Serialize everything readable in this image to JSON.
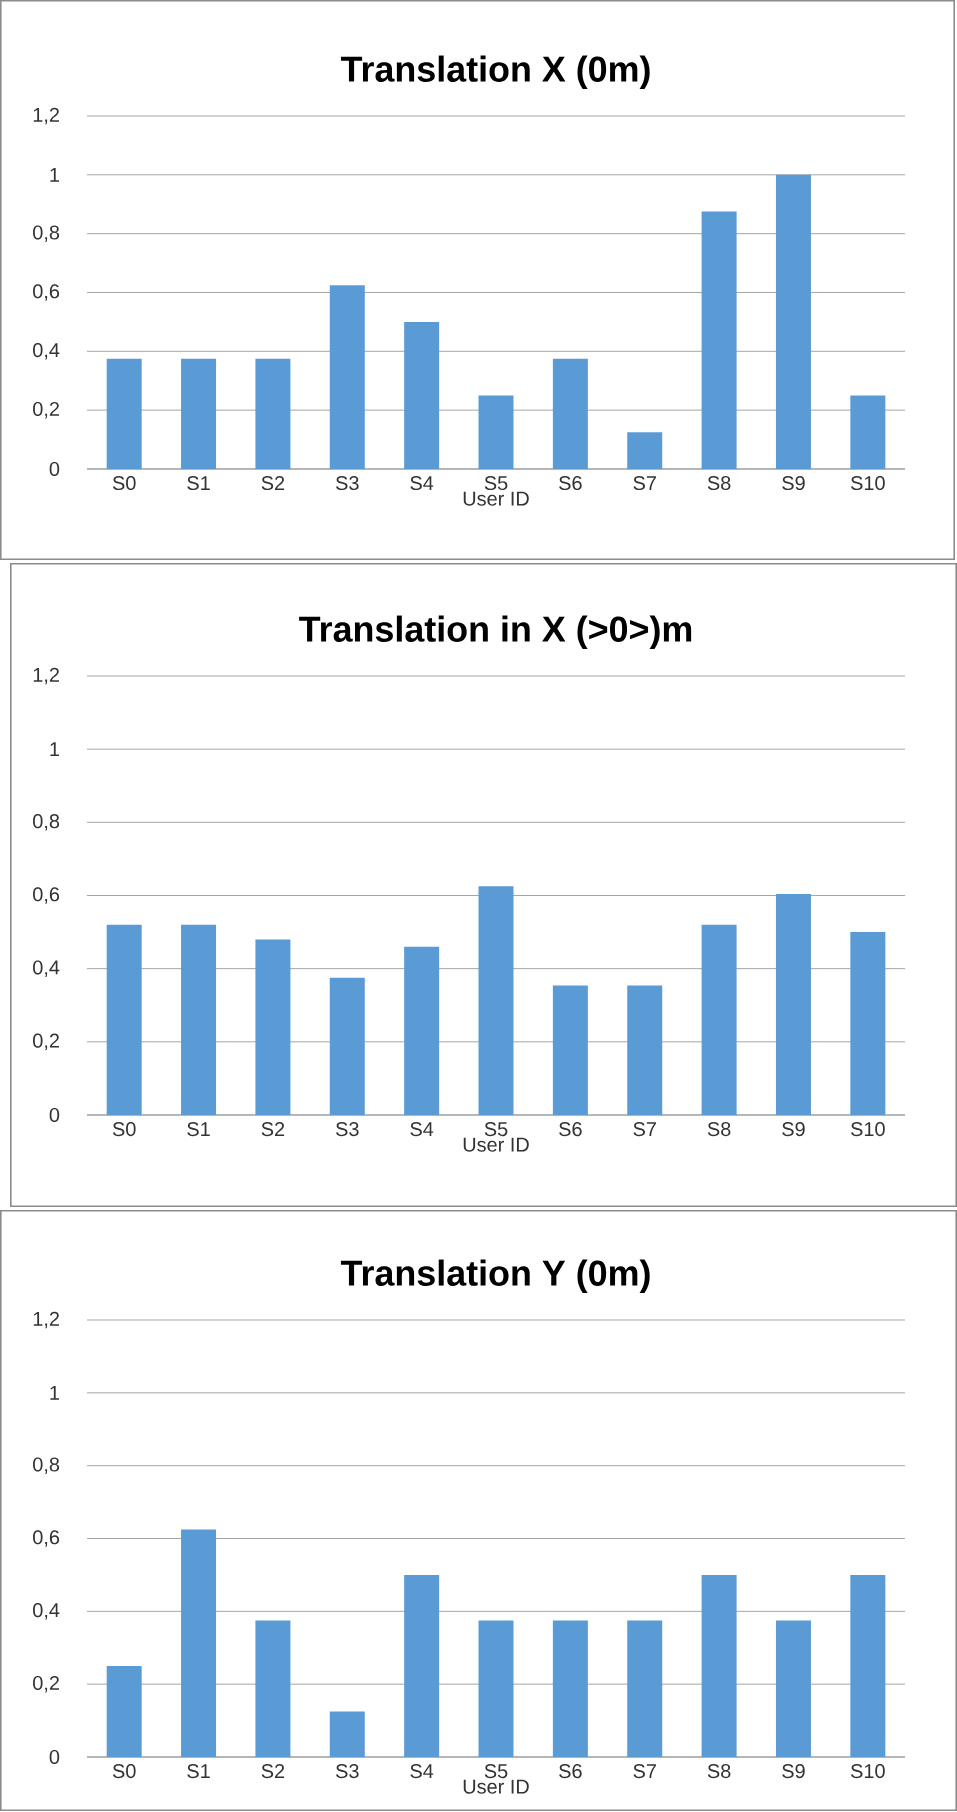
{
  "chart_data": [
    {
      "type": "bar",
      "title": "Translation X (0m)",
      "xlabel": "User ID",
      "categories": [
        "S0",
        "S1",
        "S2",
        "S3",
        "S4",
        "S5",
        "S6",
        "S7",
        "S8",
        "S9",
        "S10"
      ],
      "values": [
        0.375,
        0.375,
        0.375,
        0.625,
        0.5,
        0.25,
        0.375,
        0.125,
        0.875,
        1,
        0.25
      ],
      "color": "#5b9bd5",
      "ylim": [
        0,
        1.2
      ],
      "yticks": [
        0,
        {
          "value": 0.2,
          "label": "0,2"
        },
        {
          "value": 0.4,
          "label": "0,4"
        },
        {
          "value": 0.6,
          "label": "0,6"
        },
        {
          "value": 0.8,
          "label": "0,8"
        },
        1,
        {
          "value": 1.2,
          "label": "1,2"
        }
      ],
      "grid": "y"
    },
    {
      "type": "bar",
      "title": "Translation in X (>0>)m",
      "xlabel": "User ID",
      "categories": [
        "S0",
        "S1",
        "S2",
        "S3",
        "S4",
        "S5",
        "S6",
        "S7",
        "S8",
        "S9",
        "S10"
      ],
      "values": [
        0.52,
        0.52,
        0.48,
        0.375,
        0.46,
        0.625,
        0.354,
        0.354,
        0.52,
        0.604,
        0.5
      ],
      "color": "#5b9bd5",
      "ylim": [
        0,
        1.2
      ],
      "yticks": [
        0,
        {
          "value": 0.2,
          "label": "0,2"
        },
        {
          "value": 0.4,
          "label": "0,4"
        },
        {
          "value": 0.6,
          "label": "0,6"
        },
        {
          "value": 0.8,
          "label": "0,8"
        },
        1,
        {
          "value": 1.2,
          "label": "1,2"
        }
      ],
      "grid": "y"
    },
    {
      "type": "bar",
      "title": "Translation Y (0m)",
      "xlabel": "User ID",
      "categories": [
        "S0",
        "S1",
        "S2",
        "S3",
        "S4",
        "S5",
        "S6",
        "S7",
        "S8",
        "S9",
        "S10"
      ],
      "values": [
        0.25,
        0.625,
        0.375,
        0.125,
        0.5,
        0.375,
        0.375,
        0.375,
        0.5,
        0.375,
        0.5
      ],
      "color": "#5b9bd5",
      "ylim": [
        0,
        1.2
      ],
      "yticks": [
        0,
        {
          "value": 0.2,
          "label": "0,2"
        },
        {
          "value": 0.4,
          "label": "0,4"
        },
        {
          "value": 0.6,
          "label": "0,6"
        },
        {
          "value": 0.8,
          "label": "0,8"
        },
        1,
        {
          "value": 1.2,
          "label": "1,2"
        }
      ],
      "grid": "y"
    }
  ]
}
